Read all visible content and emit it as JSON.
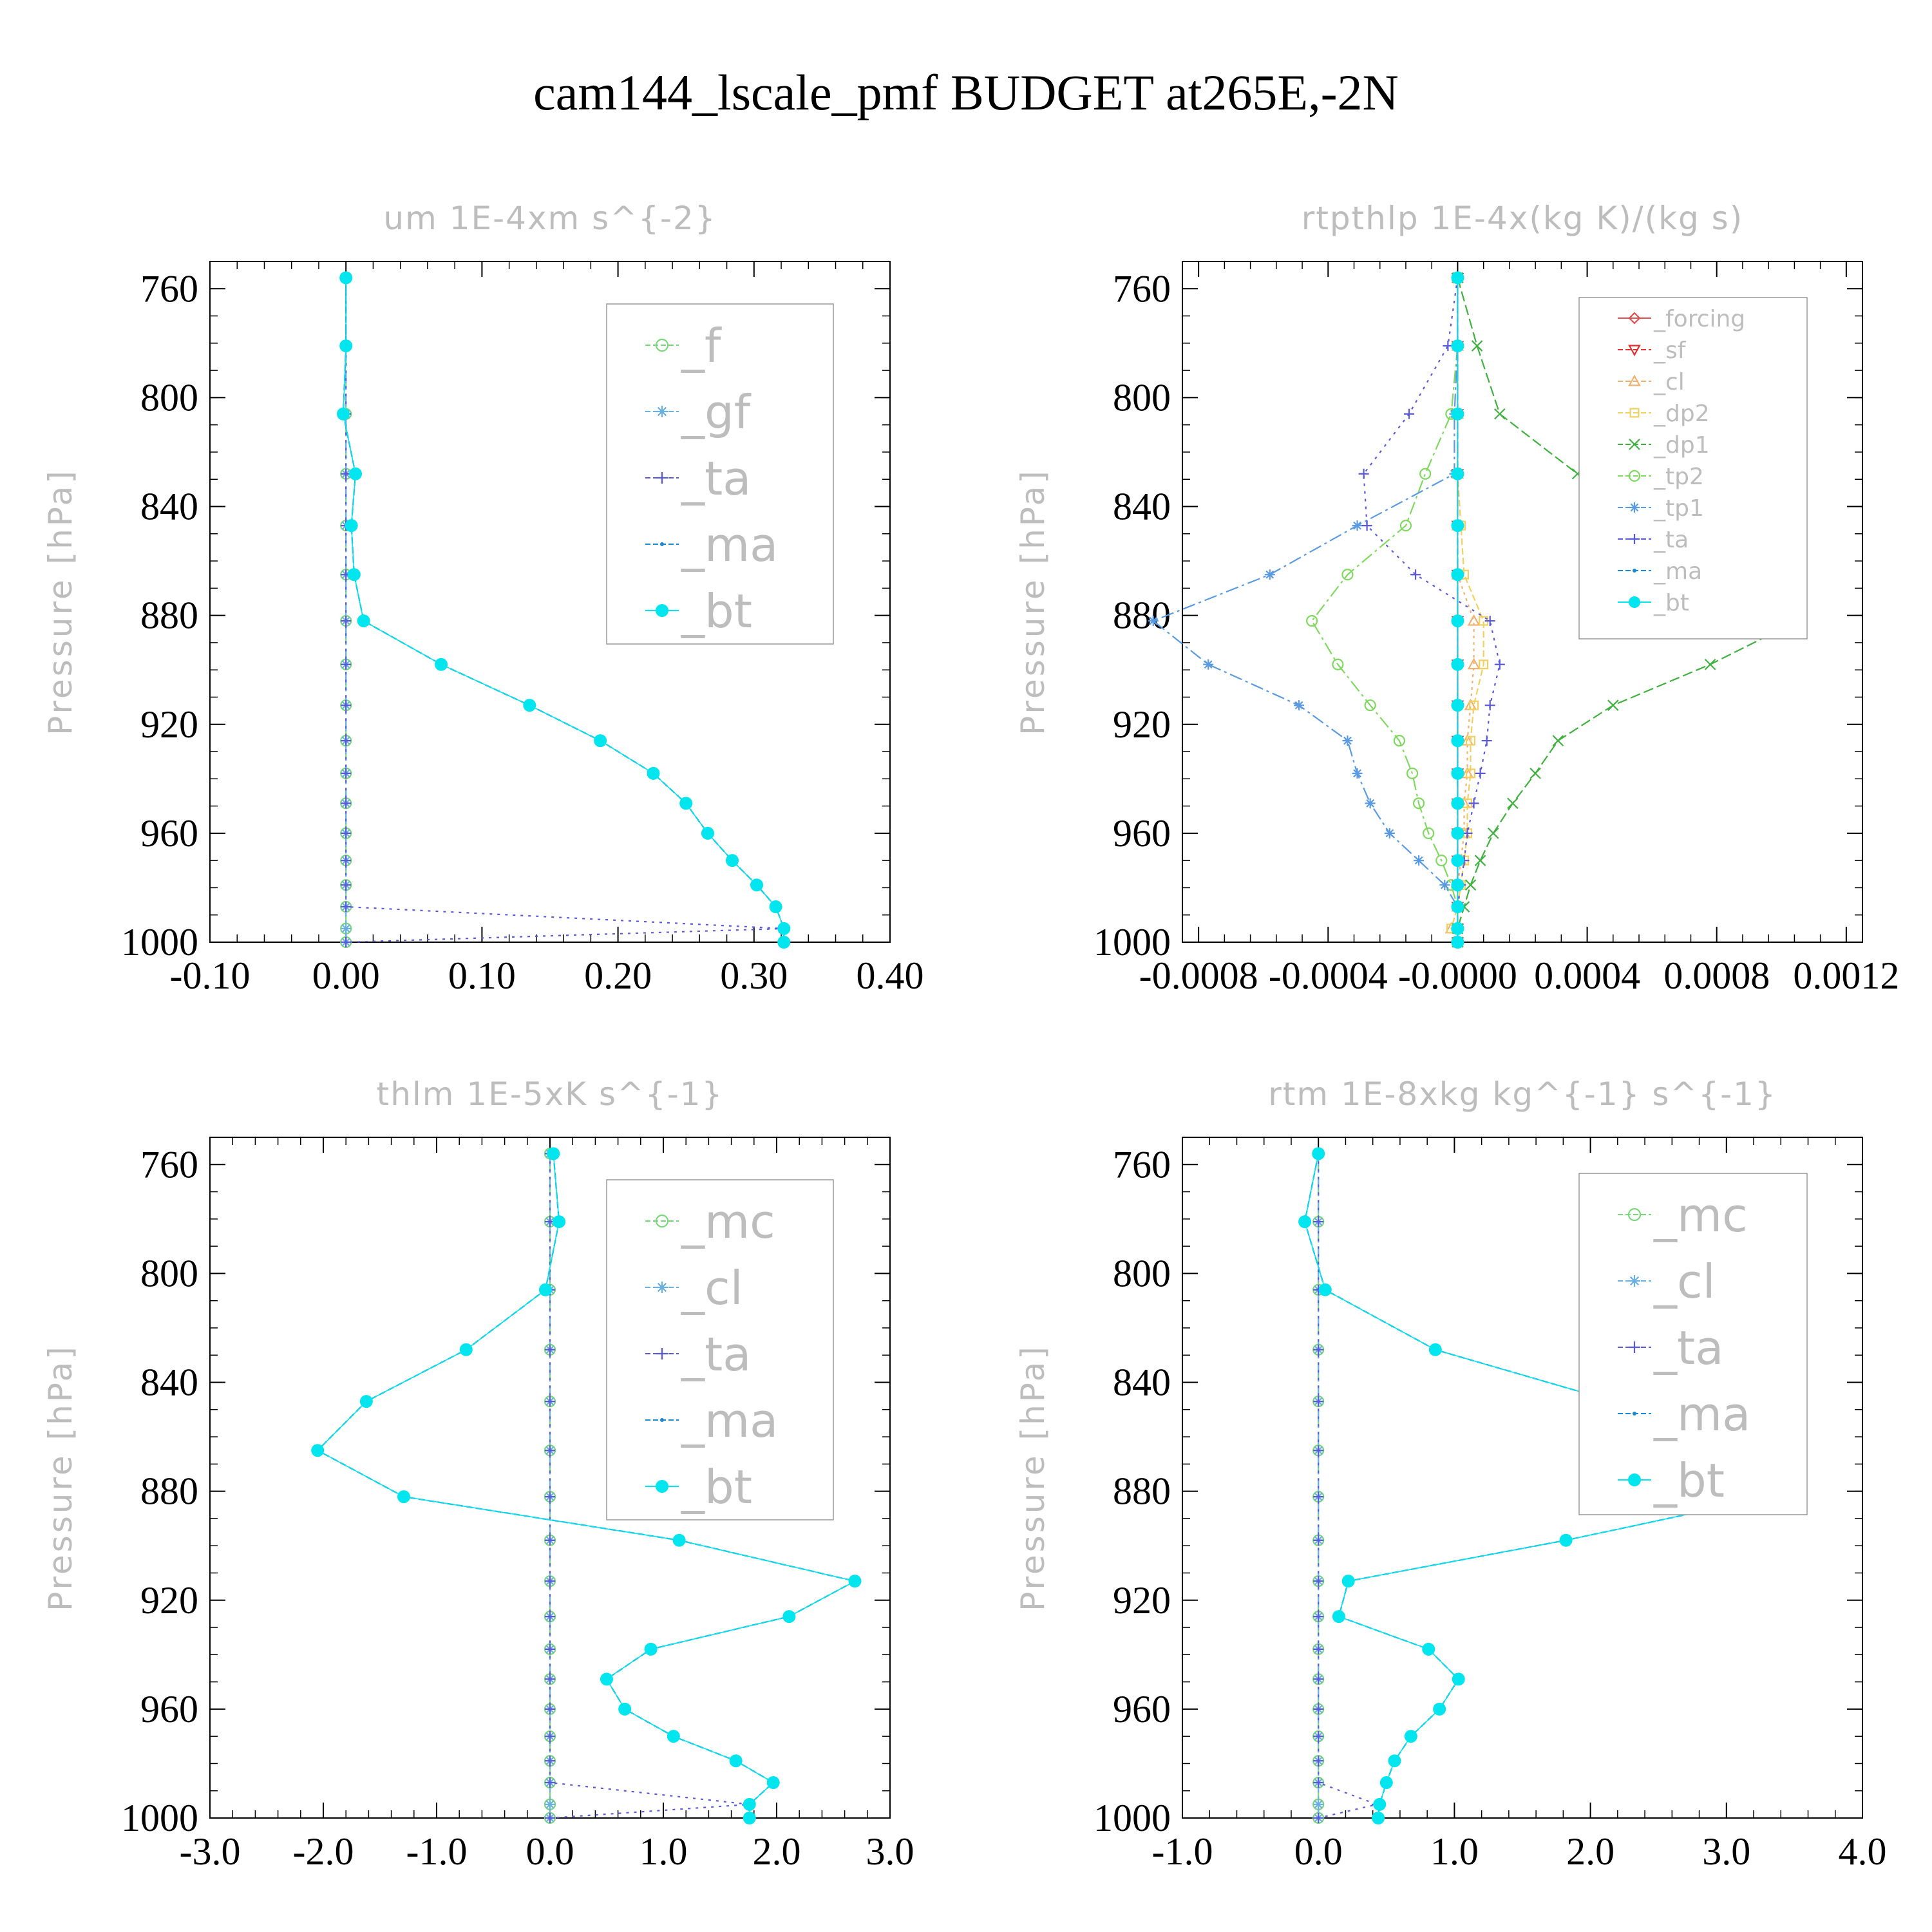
{
  "title": "cam144_lscale_pmf  BUDGET at265E,-2N",
  "colors": {
    "f": "#7ad67a",
    "gf": "#6ab0e0",
    "ta": "#5a5ad8",
    "ma": "#1a8ad0",
    "bt": "#00e5ee",
    "forcing": "#e05050",
    "sf": "#e03030",
    "cl": "#f0b070",
    "dp2": "#f0d060",
    "dp1": "#40b040",
    "tp2": "#80d860",
    "tp1": "#5a9ae0",
    "mc": "#7ad67a"
  },
  "chart_data": [
    {
      "type": "line",
      "title": "um  1E-4xm s^{-2}",
      "ylabel": "Pressure [hPa]",
      "xlabel": "",
      "xlim": [
        -0.1,
        0.4
      ],
      "ylim": [
        1000,
        750
      ],
      "x_ticks": [
        "-0.10",
        "0.00",
        "0.10",
        "0.20",
        "0.30",
        "0.40"
      ],
      "y_ticks": [
        "760",
        "800",
        "840",
        "880",
        "920",
        "960",
        "1000"
      ],
      "legend": {
        "position": "top-right",
        "entries": [
          "_f",
          "_gf",
          "_ta",
          "_ma",
          "_bt"
        ]
      },
      "levels": [
        756,
        781,
        806,
        828,
        847,
        865,
        882,
        898,
        913,
        926,
        938,
        949,
        960,
        970,
        979,
        987,
        995,
        1000
      ],
      "series": [
        {
          "name": "_f",
          "key": "f",
          "marker": "circle",
          "dash": "12,6",
          "values": [
            0,
            0,
            0,
            0,
            0,
            0,
            0,
            0,
            0,
            0,
            0,
            0,
            0,
            0,
            0,
            0,
            0,
            0
          ]
        },
        {
          "name": "_gf",
          "key": "gf",
          "marker": "star",
          "dash": "20,6,4,6",
          "values": [
            0,
            0,
            0,
            0,
            0,
            0,
            0,
            0,
            0,
            0,
            0,
            0,
            0,
            0,
            0,
            0,
            0,
            0
          ]
        },
        {
          "name": "_ta",
          "key": "ta",
          "marker": "plus",
          "dash": "4,8",
          "values": [
            0,
            0,
            0,
            0,
            0,
            0,
            0,
            0,
            0,
            0,
            0,
            0,
            0,
            0,
            0,
            0,
            0.322,
            0
          ]
        },
        {
          "name": "_ma",
          "key": "ma",
          "marker": "dot",
          "dash": "10,5",
          "values": [
            0,
            0,
            -0.002,
            0.007,
            0.004,
            0.006,
            0.013,
            0.07,
            0.135,
            0.187,
            0.226,
            0.25,
            0.266,
            0.284,
            0.302,
            0.316,
            0.322,
            0.322
          ]
        },
        {
          "name": "_bt",
          "key": "bt",
          "marker": "filled",
          "dash": "none",
          "values": [
            0,
            0,
            -0.002,
            0.007,
            0.004,
            0.006,
            0.013,
            0.07,
            0.135,
            0.187,
            0.226,
            0.25,
            0.266,
            0.284,
            0.302,
            0.316,
            0.322,
            0.322
          ]
        }
      ]
    },
    {
      "type": "line",
      "title": "rtpthlp  1E-4x(kg K)/(kg s)",
      "ylabel": "Pressure [hPa]",
      "xlabel": "",
      "xlim": [
        -0.00085,
        0.00125
      ],
      "ylim": [
        1000,
        750
      ],
      "x_ticks": [
        "-0.0008",
        "-0.0004",
        "-0.0000",
        "0.0004",
        "0.0008",
        "0.0012"
      ],
      "y_ticks": [
        "760",
        "800",
        "840",
        "880",
        "920",
        "960",
        "1000"
      ],
      "legend": {
        "position": "top-right",
        "entries": [
          "_forcing",
          "_sf",
          "_cl",
          "_dp2",
          "_dp1",
          "_tp2",
          "_tp1",
          "_ta",
          "_ma",
          "_bt"
        ]
      },
      "levels": [
        756,
        781,
        806,
        828,
        847,
        865,
        882,
        898,
        913,
        926,
        938,
        949,
        960,
        970,
        979,
        987,
        995,
        1000
      ],
      "series": [
        {
          "name": "_forcing",
          "key": "forcing",
          "marker": "diamond",
          "dash": "none",
          "values": [
            0,
            0,
            0,
            0,
            0,
            0,
            0,
            0,
            0,
            0,
            0,
            0,
            0,
            0,
            0,
            0,
            0,
            0
          ]
        },
        {
          "name": "_sf",
          "key": "sf",
          "marker": "tri-down",
          "dash": "14,6",
          "values": [
            0,
            0,
            0,
            0,
            0,
            0,
            0,
            0,
            0,
            0,
            0,
            0,
            0,
            0,
            0,
            0,
            0,
            0
          ]
        },
        {
          "name": "_cl",
          "key": "cl",
          "marker": "tri-up",
          "dash": "4,6",
          "values": [
            0,
            0,
            0,
            0,
            0,
            0,
            5e-05,
            5e-05,
            4e-05,
            3e-05,
            3e-05,
            2e-05,
            2e-05,
            1e-05,
            0,
            0,
            -2e-05,
            0
          ]
        },
        {
          "name": "_dp2",
          "key": "dp2",
          "marker": "square",
          "dash": "10,5",
          "values": [
            0,
            0,
            0,
            0,
            1e-05,
            2e-05,
            8e-05,
            8e-05,
            5e-05,
            4e-05,
            4e-05,
            3e-05,
            3e-05,
            2e-05,
            1e-05,
            0,
            -2e-05,
            0
          ]
        },
        {
          "name": "_dp1",
          "key": "dp1",
          "marker": "x",
          "dash": "16,6",
          "values": [
            0,
            6e-05,
            0.00013,
            0.00037,
            0.0006,
            0.00088,
            0.00105,
            0.00078,
            0.00048,
            0.00031,
            0.00024,
            0.00017,
            0.00011,
            7e-05,
            4e-05,
            2e-05,
            0,
            0
          ]
        },
        {
          "name": "_tp2",
          "key": "tp2",
          "marker": "circle",
          "dash": "20,6,4,6",
          "values": [
            0,
            0,
            -2e-05,
            -0.0001,
            -0.00016,
            -0.00034,
            -0.00045,
            -0.00037,
            -0.00027,
            -0.00018,
            -0.00014,
            -0.00012,
            -9e-05,
            -5e-05,
            -2e-05,
            0,
            0,
            0
          ]
        },
        {
          "name": "_tp1",
          "key": "tp1",
          "marker": "star",
          "dash": "20,6,4,6",
          "values": [
            0,
            0,
            -1e-05,
            -1e-05,
            -0.00031,
            -0.00058,
            -0.00094,
            -0.00077,
            -0.00049,
            -0.00034,
            -0.00031,
            -0.00027,
            -0.00021,
            -0.00012,
            -4e-05,
            0,
            0,
            0
          ]
        },
        {
          "name": "_ta",
          "key": "ta",
          "marker": "plus",
          "dash": "4,8",
          "values": [
            0,
            -3e-05,
            -0.00015,
            -0.00029,
            -0.00028,
            -0.00013,
            0.0001,
            0.00013,
            0.0001,
            9e-05,
            7e-05,
            5e-05,
            3e-05,
            2e-05,
            1e-05,
            0,
            0,
            0
          ]
        },
        {
          "name": "_ma",
          "key": "ma",
          "marker": "dot",
          "dash": "10,5",
          "values": [
            0,
            0,
            0,
            0,
            0,
            0,
            0,
            0,
            0,
            0,
            0,
            0,
            0,
            0,
            0,
            0,
            0,
            0
          ]
        },
        {
          "name": "_bt",
          "key": "bt",
          "marker": "filled",
          "dash": "none",
          "values": [
            0,
            0,
            0,
            0,
            0,
            0,
            0,
            0,
            0,
            0,
            0,
            0,
            0,
            0,
            0,
            0,
            0,
            0
          ]
        }
      ]
    },
    {
      "type": "line",
      "title": "thlm  1E-5xK s^{-1}",
      "ylabel": "Pressure [hPa]",
      "xlabel": "",
      "xlim": [
        -3,
        3
      ],
      "ylim": [
        1000,
        750
      ],
      "x_ticks": [
        "-3.0",
        "-2.0",
        "-1.0",
        "0.0",
        "1.0",
        "2.0",
        "3.0"
      ],
      "y_ticks": [
        "760",
        "800",
        "840",
        "880",
        "920",
        "960",
        "1000"
      ],
      "legend": {
        "position": "top-right",
        "entries": [
          "_mc",
          "_cl",
          "_ta",
          "_ma",
          "_bt"
        ]
      },
      "levels": [
        756,
        781,
        806,
        828,
        847,
        865,
        882,
        898,
        913,
        926,
        938,
        949,
        960,
        970,
        979,
        987,
        995,
        1000
      ],
      "series": [
        {
          "name": "_mc",
          "key": "mc",
          "marker": "circle",
          "dash": "12,6",
          "values": [
            0,
            0,
            0,
            0,
            0,
            0,
            0,
            0,
            0,
            0,
            0,
            0,
            0,
            0,
            0,
            0,
            0,
            0
          ]
        },
        {
          "name": "_cl",
          "key": "gf",
          "marker": "star",
          "dash": "20,6,4,6",
          "values": [
            0,
            0,
            0,
            0,
            0,
            0,
            0,
            0,
            0,
            0,
            0,
            0,
            0,
            0,
            0,
            0,
            0,
            0
          ]
        },
        {
          "name": "_ta",
          "key": "ta",
          "marker": "plus",
          "dash": "4,8",
          "values": [
            0,
            0,
            0,
            0,
            0,
            0,
            0,
            0,
            0,
            0,
            0,
            0,
            0,
            0,
            0,
            0,
            1.76,
            0
          ]
        },
        {
          "name": "_ma",
          "key": "ma",
          "marker": "dot",
          "dash": "10,5",
          "values": [
            0.03,
            0.08,
            -0.04,
            -0.74,
            -1.62,
            -2.05,
            -1.29,
            1.14,
            2.69,
            2.11,
            0.89,
            0.5,
            0.66,
            1.09,
            1.64,
            1.97,
            1.76,
            1.76
          ]
        },
        {
          "name": "_bt",
          "key": "bt",
          "marker": "filled",
          "dash": "none",
          "values": [
            0.03,
            0.08,
            -0.04,
            -0.74,
            -1.62,
            -2.05,
            -1.29,
            1.14,
            2.69,
            2.11,
            0.89,
            0.5,
            0.66,
            1.09,
            1.64,
            1.97,
            1.76,
            1.76
          ]
        }
      ]
    },
    {
      "type": "line",
      "title": "rtm  1E-8xkg kg^{-1} s^{-1}",
      "ylabel": "Pressure [hPa]",
      "xlabel": "",
      "xlim": [
        -1,
        4
      ],
      "ylim": [
        1000,
        750
      ],
      "x_ticks": [
        "-1.0",
        "0.0",
        "1.0",
        "2.0",
        "3.0",
        "4.0"
      ],
      "y_ticks": [
        "760",
        "800",
        "840",
        "880",
        "920",
        "960",
        "1000"
      ],
      "legend": {
        "position": "top-right",
        "entries": [
          "_mc",
          "_cl",
          "_ta",
          "_ma",
          "_bt"
        ]
      },
      "levels": [
        756,
        781,
        806,
        828,
        847,
        865,
        882,
        898,
        913,
        926,
        938,
        949,
        960,
        970,
        979,
        987,
        995,
        1000
      ],
      "series": [
        {
          "name": "_mc",
          "key": "mc",
          "marker": "circle",
          "dash": "12,6",
          "values": [
            0,
            0,
            0,
            0,
            0,
            0,
            0,
            0,
            0,
            0,
            0,
            0,
            0,
            0,
            0,
            0,
            0,
            0
          ]
        },
        {
          "name": "_cl",
          "key": "gf",
          "marker": "star",
          "dash": "20,6,4,6",
          "values": [
            0,
            0,
            0,
            0,
            0,
            0,
            0,
            0,
            0,
            0,
            0,
            0,
            0,
            0,
            0,
            0,
            0,
            0
          ]
        },
        {
          "name": "_ta",
          "key": "ta",
          "marker": "plus",
          "dash": "4,8",
          "values": [
            0,
            0,
            0,
            0,
            0,
            0,
            0,
            0,
            0,
            0,
            0,
            0,
            0,
            0,
            0,
            0,
            0.43,
            0
          ]
        },
        {
          "name": "_ma",
          "key": "ma",
          "marker": "dot",
          "dash": "10,5",
          "values": [
            0,
            -0.1,
            0.05,
            0.86,
            2.17,
            3.26,
            3.32,
            1.82,
            0.22,
            0.15,
            0.81,
            1.03,
            0.89,
            0.68,
            0.56,
            0.5,
            0.45,
            0.44
          ]
        },
        {
          "name": "_bt",
          "key": "bt",
          "marker": "filled",
          "dash": "none",
          "values": [
            0,
            -0.1,
            0.05,
            0.86,
            2.17,
            3.26,
            3.32,
            1.82,
            0.22,
            0.15,
            0.81,
            1.03,
            0.89,
            0.68,
            0.56,
            0.5,
            0.45,
            0.44
          ]
        }
      ]
    }
  ]
}
